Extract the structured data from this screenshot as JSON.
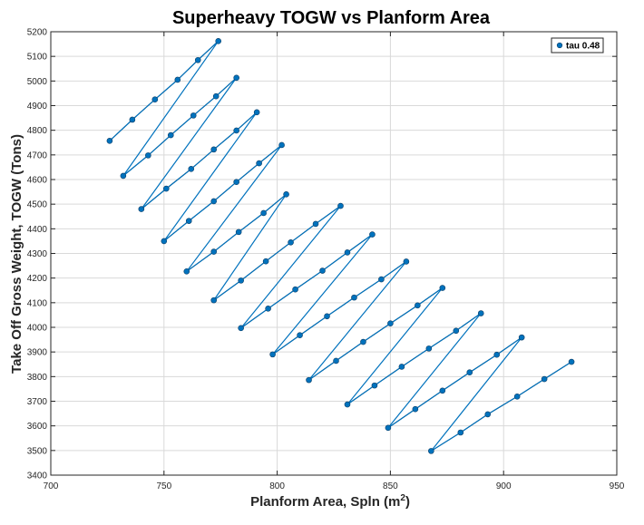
{
  "chart_data": {
    "type": "line",
    "title": "Superheavy TOGW vs Planform Area",
    "xlabel": "Planform Area, Spln (m",
    "xlabel_sup": "2",
    "xlabel_tail": ")",
    "ylabel": "Take Off Gross Weight, TOGW (Tons)",
    "xlim": [
      700,
      950
    ],
    "ylim": [
      3400,
      5200
    ],
    "xticks": [
      700,
      750,
      800,
      850,
      900,
      950
    ],
    "yticks": [
      3400,
      3500,
      3600,
      3700,
      3800,
      3900,
      4000,
      4100,
      4200,
      4300,
      4400,
      4500,
      4600,
      4700,
      4800,
      4900,
      5000,
      5100,
      5200
    ],
    "grid": true,
    "legend_position": "top-right",
    "colors": {
      "series": "#0072BD",
      "group_line": "#000000",
      "marker": "#0072BD"
    },
    "series": [
      {
        "name": "tau 0.48",
        "points": [
          [
            726,
            4757
          ],
          [
            736,
            4843
          ],
          [
            746,
            4925
          ],
          [
            756,
            5005
          ],
          [
            765,
            5085
          ],
          [
            774,
            5162
          ],
          [
            732,
            4615
          ],
          [
            743,
            4698
          ],
          [
            753,
            4780
          ],
          [
            763,
            4860
          ],
          [
            773,
            4938
          ],
          [
            782,
            5013
          ],
          [
            740,
            4480
          ],
          [
            751,
            4563
          ],
          [
            762,
            4643
          ],
          [
            772,
            4722
          ],
          [
            782,
            4799
          ],
          [
            791,
            4873
          ],
          [
            750,
            4350
          ],
          [
            761,
            4432
          ],
          [
            772,
            4512
          ],
          [
            782,
            4590
          ],
          [
            792,
            4666
          ],
          [
            802,
            4740
          ],
          [
            760,
            4227
          ],
          [
            772,
            4307
          ],
          [
            783,
            4387
          ],
          [
            794,
            4464
          ],
          [
            804,
            4540
          ],
          [
            772,
            4110
          ],
          [
            784,
            4190
          ],
          [
            795,
            4268
          ],
          [
            806,
            4345
          ],
          [
            817,
            4420
          ],
          [
            828,
            4493
          ],
          [
            784,
            3997
          ],
          [
            796,
            4076
          ],
          [
            808,
            4154
          ],
          [
            820,
            4230
          ],
          [
            831,
            4304
          ],
          [
            842,
            4377
          ],
          [
            798,
            3890
          ],
          [
            810,
            3968
          ],
          [
            822,
            4045
          ],
          [
            834,
            4121
          ],
          [
            846,
            4195
          ],
          [
            857,
            4267
          ],
          [
            814,
            3786
          ],
          [
            826,
            3864
          ],
          [
            838,
            3941
          ],
          [
            850,
            4016
          ],
          [
            862,
            4089
          ],
          [
            873,
            4160
          ],
          [
            831,
            3687
          ],
          [
            843,
            3764
          ],
          [
            855,
            3840
          ],
          [
            867,
            3914
          ],
          [
            879,
            3986
          ],
          [
            890,
            4057
          ],
          [
            849,
            3592
          ],
          [
            861,
            3668
          ],
          [
            873,
            3743
          ],
          [
            885,
            3817
          ],
          [
            897,
            3889
          ],
          [
            908,
            3959
          ],
          [
            868,
            3498
          ],
          [
            881,
            3573
          ],
          [
            893,
            3647
          ],
          [
            906,
            3719
          ],
          [
            918,
            3790
          ],
          [
            930,
            3860
          ]
        ],
        "groups": [
          [
            [
              726,
              4757
            ],
            [
              736,
              4843
            ],
            [
              746,
              4925
            ],
            [
              756,
              5005
            ],
            [
              765,
              5085
            ],
            [
              774,
              5162
            ]
          ],
          [
            [
              732,
              4615
            ],
            [
              743,
              4698
            ],
            [
              753,
              4780
            ],
            [
              763,
              4860
            ],
            [
              773,
              4938
            ],
            [
              782,
              5013
            ]
          ],
          [
            [
              740,
              4480
            ],
            [
              751,
              4563
            ],
            [
              762,
              4643
            ],
            [
              772,
              4722
            ],
            [
              782,
              4799
            ],
            [
              791,
              4873
            ]
          ],
          [
            [
              750,
              4350
            ],
            [
              761,
              4432
            ],
            [
              772,
              4512
            ],
            [
              782,
              4590
            ],
            [
              792,
              4666
            ],
            [
              802,
              4740
            ]
          ],
          [
            [
              760,
              4227
            ],
            [
              772,
              4307
            ],
            [
              783,
              4387
            ],
            [
              794,
              4464
            ],
            [
              804,
              4540
            ]
          ],
          [
            [
              772,
              4110
            ],
            [
              784,
              4190
            ],
            [
              795,
              4268
            ],
            [
              806,
              4345
            ],
            [
              817,
              4420
            ],
            [
              828,
              4493
            ]
          ],
          [
            [
              784,
              3997
            ],
            [
              796,
              4076
            ],
            [
              808,
              4154
            ],
            [
              820,
              4230
            ],
            [
              831,
              4304
            ],
            [
              842,
              4377
            ]
          ],
          [
            [
              798,
              3890
            ],
            [
              810,
              3968
            ],
            [
              822,
              4045
            ],
            [
              834,
              4121
            ],
            [
              846,
              4195
            ],
            [
              857,
              4267
            ]
          ],
          [
            [
              814,
              3786
            ],
            [
              826,
              3864
            ],
            [
              838,
              3941
            ],
            [
              850,
              4016
            ],
            [
              862,
              4089
            ],
            [
              873,
              4160
            ]
          ],
          [
            [
              831,
              3687
            ],
            [
              843,
              3764
            ],
            [
              855,
              3840
            ],
            [
              867,
              3914
            ],
            [
              879,
              3986
            ],
            [
              890,
              4057
            ]
          ],
          [
            [
              849,
              3592
            ],
            [
              861,
              3668
            ],
            [
              873,
              3743
            ],
            [
              885,
              3817
            ],
            [
              897,
              3889
            ],
            [
              908,
              3959
            ]
          ],
          [
            [
              868,
              3498
            ],
            [
              881,
              3573
            ],
            [
              893,
              3647
            ],
            [
              906,
              3719
            ],
            [
              918,
              3790
            ],
            [
              930,
              3860
            ]
          ]
        ]
      }
    ]
  }
}
